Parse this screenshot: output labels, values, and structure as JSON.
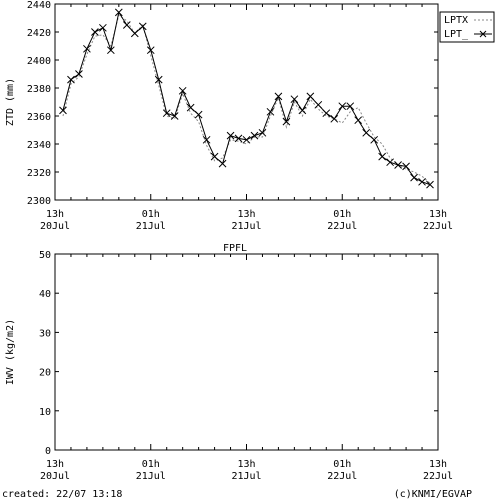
{
  "chart_data": [
    {
      "type": "line",
      "title": "",
      "ylabel": "ZTD (mm)",
      "xlabel": "",
      "ylim": [
        2300,
        2440
      ],
      "yticks": [
        2300,
        2320,
        2340,
        2360,
        2380,
        2400,
        2420,
        2440
      ],
      "xlim": [
        0,
        48
      ],
      "xtick_labels": [
        {
          "x": 0,
          "hour": "13h",
          "date": "20Jul"
        },
        {
          "x": 12,
          "hour": "01h",
          "date": "21Jul"
        },
        {
          "x": 24,
          "hour": "13h",
          "date": "21Jul"
        },
        {
          "x": 36,
          "hour": "01h",
          "date": "22Jul"
        },
        {
          "x": 48,
          "hour": "13h",
          "date": "22Jul"
        }
      ],
      "legend_position": "top-right",
      "series": [
        {
          "name": "LPTX",
          "style": "dashed",
          "x": [
            1,
            2,
            3,
            4,
            5,
            6,
            7,
            8,
            9,
            10,
            11,
            12,
            13,
            14,
            15,
            16,
            17,
            18,
            19,
            20,
            21,
            22,
            23,
            24,
            25,
            26,
            27,
            28,
            29,
            30,
            31,
            32,
            33,
            34,
            35,
            36,
            37,
            38,
            39,
            40,
            41,
            42,
            43,
            44,
            45,
            46,
            47
          ],
          "values": [
            2360,
            2383,
            2388,
            2404,
            2417,
            2418,
            2410,
            2432,
            2428,
            2419,
            2425,
            2403,
            2382,
            2360,
            2358,
            2376,
            2362,
            2356,
            2339,
            2328,
            2330,
            2343,
            2342,
            2340,
            2345,
            2345,
            2360,
            2373,
            2352,
            2370,
            2360,
            2372,
            2365,
            2360,
            2358,
            2355,
            2363,
            2366,
            2355,
            2345,
            2340,
            2330,
            2325,
            2322,
            2320,
            2317,
            2312
          ]
        },
        {
          "name": "LPT_",
          "style": "solid-x-markers",
          "x": [
            1,
            2,
            3,
            4,
            5,
            6,
            7,
            8,
            9,
            10,
            11,
            12,
            13,
            14,
            15,
            16,
            17,
            18,
            19,
            20,
            21,
            22,
            23,
            24,
            25,
            26,
            27,
            28,
            29,
            30,
            31,
            32,
            33,
            34,
            35,
            36,
            37,
            38,
            39,
            40,
            41,
            42,
            43,
            44,
            45,
            46,
            47
          ],
          "values": [
            2364,
            2386,
            2390,
            2408,
            2420,
            2423,
            2407,
            2434,
            2425,
            2419,
            2424,
            2407,
            2386,
            2362,
            2360,
            2378,
            2366,
            2361,
            2343,
            2331,
            2326,
            2346,
            2344,
            2343,
            2346,
            2348,
            2363,
            2374,
            2356,
            2372,
            2364,
            2374,
            2368,
            2362,
            2358,
            2367,
            2367,
            2357,
            2348,
            2343,
            2331,
            2327,
            2325,
            2324,
            2316,
            2313,
            2311
          ]
        }
      ]
    },
    {
      "type": "line",
      "title": "FPFL",
      "ylabel": "IWV (kg/m2)",
      "xlabel": "",
      "ylim": [
        0,
        50
      ],
      "yticks": [
        0,
        10,
        20,
        30,
        40,
        50
      ],
      "xlim": [
        0,
        48
      ],
      "xtick_labels": [
        {
          "x": 0,
          "hour": "13h",
          "date": "20Jul"
        },
        {
          "x": 12,
          "hour": "01h",
          "date": "21Jul"
        },
        {
          "x": 24,
          "hour": "13h",
          "date": "21Jul"
        },
        {
          "x": 36,
          "hour": "01h",
          "date": "22Jul"
        },
        {
          "x": 48,
          "hour": "13h",
          "date": "22Jul"
        }
      ],
      "series": []
    }
  ],
  "footer": {
    "created": "created: 22/07 13:18",
    "credit": "(c)KNMI/EGVAP"
  }
}
